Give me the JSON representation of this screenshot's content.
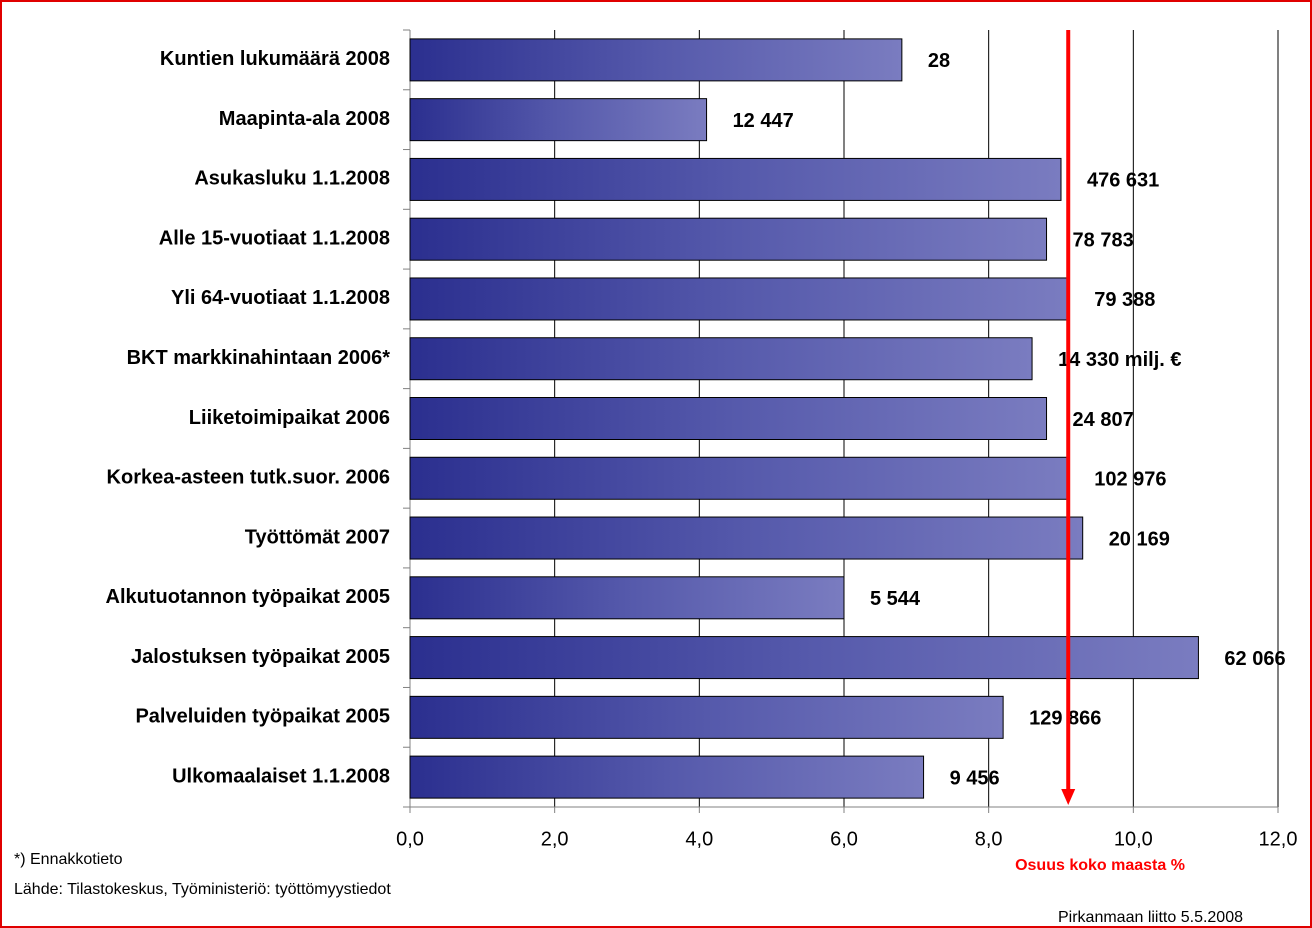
{
  "chart_data": {
    "type": "barh",
    "categories": [
      "Kuntien lukumäärä 2008",
      "Maapinta-ala 2008",
      "Asukasluku 1.1.2008",
      "Alle 15-vuotiaat 1.1.2008",
      "Yli 64-vuotiaat 1.1.2008",
      "BKT markkinahintaan 2006*",
      "Liiketoimipaikat 2006",
      "Korkea-asteen tutk.suor. 2006",
      "Työttömät 2007",
      "Alkutuotannon työpaikat 2005",
      "Jalostuksen työpaikat 2005",
      "Palveluiden työpaikat 2005",
      "Ulkomaalaiset 1.1.2008"
    ],
    "values": [
      6.8,
      4.1,
      9.0,
      8.8,
      9.1,
      8.6,
      8.8,
      9.1,
      9.3,
      6.0,
      10.9,
      8.2,
      7.1
    ],
    "bar_annotations": [
      "28",
      "12 447",
      "476 631",
      "78 783",
      "79 388",
      "14 330 milj. €",
      "24 807",
      "102 976",
      "20 169",
      "5 544",
      "62 066",
      "129 866",
      "9 456"
    ],
    "color": "#2e3192",
    "xlim": [
      0,
      12
    ],
    "xticks": [
      {
        "value": 0,
        "label": "0,0"
      },
      {
        "value": 2,
        "label": "2,0"
      },
      {
        "value": 4,
        "label": "4,0"
      },
      {
        "value": 6,
        "label": "6,0"
      },
      {
        "value": 8,
        "label": "8,0"
      },
      {
        "value": 10,
        "label": "10,0"
      },
      {
        "value": 12,
        "label": "12,0"
      }
    ],
    "grid": true,
    "reference_line": {
      "value": 9.1,
      "label": "Osuus koko maasta %",
      "color": "#ff0000"
    },
    "footnote": "*)  Ennakkotieto",
    "source": "Lähde: Tilastokeskus, Työministeriö: työttömyystiedot",
    "credit": "Pirkanmaan liitto 5.5.2008"
  }
}
